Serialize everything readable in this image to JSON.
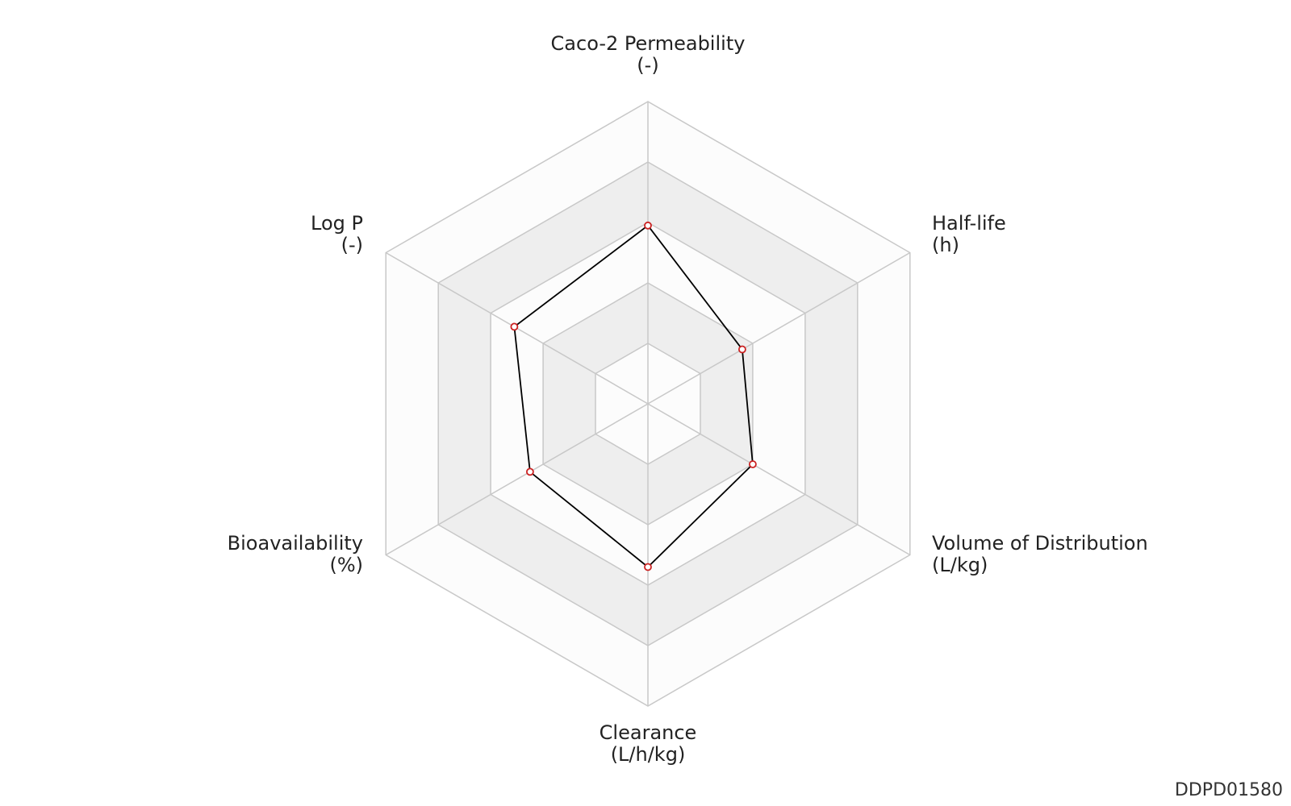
{
  "chart_data": {
    "type": "radar",
    "axes": [
      {
        "name": "Caco-2 Permeability",
        "unit": "(-)"
      },
      {
        "name": "Half-life",
        "unit": "(h)"
      },
      {
        "name": "Volume of Distribution",
        "unit": "(L/kg)"
      },
      {
        "name": "Clearance",
        "unit": "(L/h/kg)"
      },
      {
        "name": "Bioavailability",
        "unit": "(%)"
      },
      {
        "name": "Log P",
        "unit": "(-)"
      }
    ],
    "rings": 5,
    "range": [
      0,
      1
    ],
    "values": [
      0.59,
      0.36,
      0.4,
      0.54,
      0.45,
      0.51
    ],
    "grid": true,
    "colors": {
      "band_shaded": "#eeeeee",
      "band_light": "#fcfcfc",
      "grid_line": "#c8c8c8",
      "series_line": "#000000",
      "marker": "#cc2222"
    }
  },
  "watermark": "DDPD01580"
}
